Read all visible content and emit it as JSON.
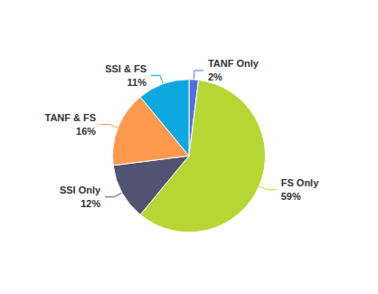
{
  "chart_data": {
    "type": "pie",
    "categories": [
      "TANF Only",
      "FS Only",
      "SSI Only",
      "TANF & FS",
      "SSI & FS"
    ],
    "values": [
      2,
      59,
      12,
      16,
      11
    ],
    "value_labels": [
      "2%",
      "59%",
      "12%",
      "16%",
      "11%"
    ],
    "data_labels": true
  }
}
